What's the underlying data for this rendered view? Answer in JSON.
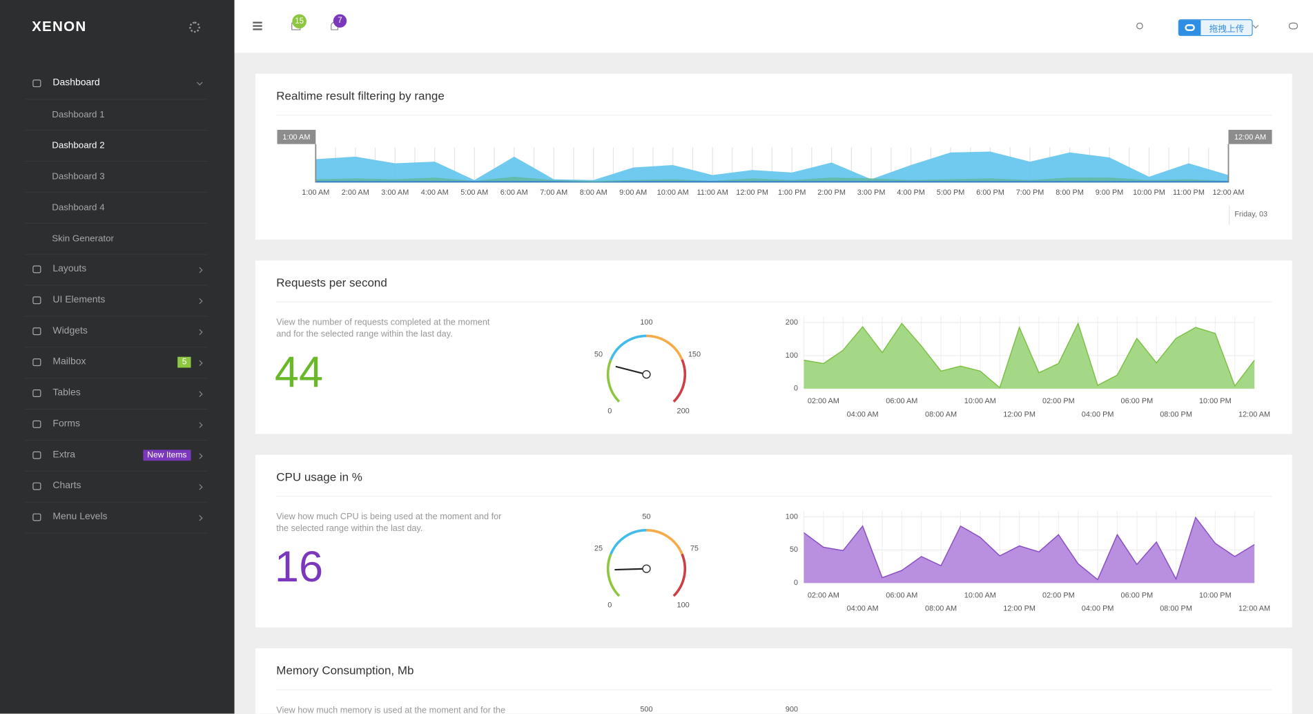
{
  "sidebar": {
    "logo": "XENON",
    "active_child": 1,
    "menu": [
      {
        "label": "Dashboard",
        "children": [
          "Dashboard 1",
          "Dashboard 2",
          "Dashboard 3",
          "Dashboard 4",
          "Skin Generator"
        ]
      },
      {
        "label": "Layouts"
      },
      {
        "label": "UI Elements"
      },
      {
        "label": "Widgets"
      },
      {
        "label": "Mailbox",
        "badge": 5,
        "badge_color": "#8dc63f"
      },
      {
        "label": "Tables"
      },
      {
        "label": "Forms"
      },
      {
        "label": "Extra",
        "badge": "New Items",
        "badge_color": "#7c38bc"
      },
      {
        "label": "Charts"
      },
      {
        "label": "Menu Levels"
      }
    ]
  },
  "header": {
    "mail_badge": 15,
    "mail_badge_color": "#8dc63f",
    "bell_badge": 7,
    "bell_badge_color": "#7c38bc",
    "upload_button": "拖拽上传"
  },
  "panels": [
    {
      "title": "Realtime result filtering by range",
      "chart": {
        "type": "area",
        "categories": [
          "1:00 AM",
          "2:00 AM",
          "3:00 AM",
          "4:00 AM",
          "5:00 AM",
          "6:00 AM",
          "7:00 AM",
          "8:00 AM",
          "9:00 AM",
          "10:00 AM",
          "11:00 AM",
          "12:00 PM",
          "1:00 PM",
          "2:00 PM",
          "3:00 PM",
          "4:00 PM",
          "5:00 PM",
          "6:00 PM",
          "7:00 PM",
          "8:00 PM",
          "9:00 PM",
          "10:00 PM",
          "11:00 PM",
          "12:00 AM"
        ],
        "series": [
          {
            "color": "#68c6ee",
            "values": [
              28,
              31,
              23,
              25,
              3,
              31,
              4,
              3,
              18,
              21,
              9,
              15,
              12,
              24,
              4,
              21,
              36,
              37,
              25,
              36,
              30,
              7,
              23,
              9
            ]
          },
          {
            "color": "#5fb89a",
            "values": [
              4,
              5,
              4,
              6,
              2,
              7,
              3,
              2,
              3,
              4,
              2,
              5,
              3,
              6,
              5,
              3,
              4,
              5,
              3,
              6,
              6,
              3,
              4,
              2
            ]
          },
          {
            "color": "#3a7bd5",
            "values": [
              2,
              2,
              2,
              2,
              2,
              2,
              2,
              1,
              2,
              2,
              2,
              2,
              2,
              2,
              2,
              2,
              2,
              2,
              2,
              2,
              2,
              2,
              2,
              2
            ]
          }
        ],
        "ylim": [
          0,
          50
        ],
        "range_start": "1:00 AM",
        "range_end": "12:00 AM",
        "date_label": "Friday, 03"
      }
    },
    {
      "title": "Requests per second",
      "description": "View the number of requests completed at the moment and for the selected range within the last day.",
      "value": 44,
      "value_color": "#68b828",
      "gauge": {
        "lim": [
          0,
          200
        ],
        "ticks": [
          0,
          50,
          100,
          150,
          200
        ],
        "colors": [
          "#8dc63f",
          "#40bbea",
          "#f7aa47",
          "#cc3f44"
        ]
      },
      "chart": {
        "type": "area",
        "fill": "#a5d886",
        "color": "#7ac143",
        "categories": [
          null,
          "02:00 AM",
          null,
          "04:00 AM",
          null,
          "06:00 AM",
          null,
          "08:00 AM",
          null,
          "10:00 AM",
          null,
          "12:00 PM",
          null,
          "02:00 PM",
          null,
          "04:00 PM",
          null,
          "06:00 PM",
          null,
          "08:00 PM",
          null,
          "10:00 PM",
          null,
          "12:00 AM"
        ],
        "values": [
          86,
          76,
          116,
          187,
          109,
          197,
          129,
          53,
          68,
          53,
          3,
          185,
          48,
          76,
          197,
          10,
          41,
          152,
          78,
          152,
          185,
          167,
          8,
          86
        ],
        "ylim": [
          0,
          200
        ],
        "yticks": [
          0,
          100,
          200
        ],
        "grid": true
      }
    },
    {
      "title": "CPU usage in %",
      "description": "View how much CPU is being used at the moment and for the selected range within the last day.",
      "value": 16,
      "value_color": "#7c38bc",
      "gauge": {
        "lim": [
          0,
          100
        ],
        "ticks": [
          0,
          25,
          50,
          75,
          100
        ],
        "colors": [
          "#8dc63f",
          "#40bbea",
          "#f7aa47",
          "#cc3f44"
        ]
      },
      "chart": {
        "type": "area",
        "fill": "#b98fe0",
        "color": "#8a4ec4",
        "categories": [
          null,
          "02:00 AM",
          null,
          "04:00 AM",
          null,
          "06:00 AM",
          null,
          "08:00 AM",
          null,
          "10:00 AM",
          null,
          "12:00 PM",
          null,
          "02:00 PM",
          null,
          "04:00 PM",
          null,
          "06:00 PM",
          null,
          "08:00 PM",
          null,
          "10:00 PM",
          null,
          "12:00 AM"
        ],
        "values": [
          76,
          54,
          49,
          86,
          8,
          19,
          40,
          26,
          86,
          69,
          41,
          56,
          47,
          73,
          29,
          5,
          73,
          28,
          62,
          6,
          99,
          60,
          40,
          58
        ],
        "ylim": [
          0,
          100
        ],
        "yticks": [
          0,
          50,
          100
        ],
        "grid": true
      }
    },
    {
      "title": "Memory Consumption, Mb",
      "description": "View how much memory is used at the moment and for the",
      "gauge": {
        "ticks": [
          500
        ]
      },
      "chart": {
        "yticks": [
          900
        ]
      }
    }
  ]
}
